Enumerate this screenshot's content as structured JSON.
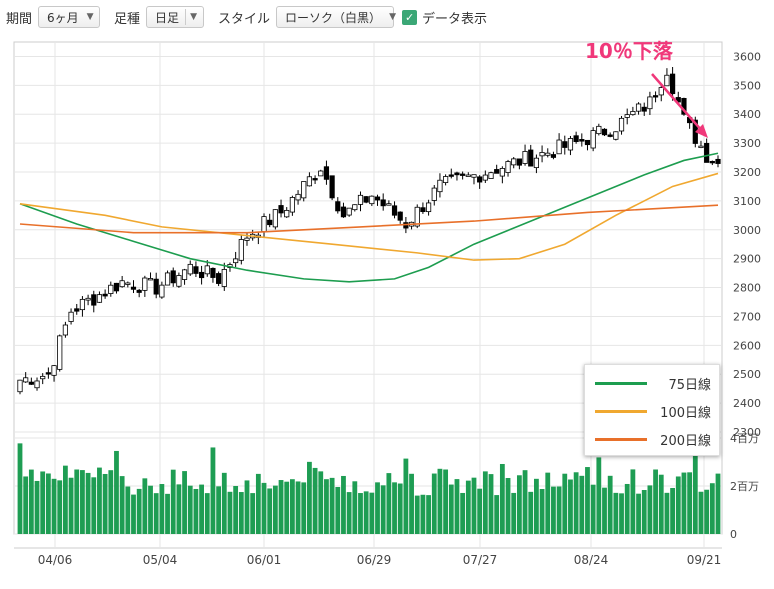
{
  "toolbar": {
    "period_label": "期間",
    "period_value": "6ヶ月",
    "ashu_label": "足種",
    "ashu_value": "日足",
    "style_label": "スタイル",
    "style_value": "ローソク（白黒）",
    "data_display_label": "データ表示",
    "data_display_checked": true
  },
  "annotation": "10％下落",
  "legend": [
    {
      "label": "75日線",
      "color": "#1d9d4f"
    },
    {
      "label": "100日線",
      "color": "#f0a830"
    },
    {
      "label": "200日線",
      "color": "#e8702a"
    }
  ],
  "chart_data": {
    "type": "candlestick",
    "price_axis": {
      "ticks": [
        3600,
        3500,
        3400,
        3300,
        3200,
        3100,
        3000,
        2900,
        2800,
        2700,
        2600,
        2500,
        2400,
        2300
      ],
      "range": [
        2300,
        3650
      ]
    },
    "volume_axis": {
      "ticks": [
        "4百万",
        "2百万",
        "0"
      ],
      "range": [
        0,
        4
      ]
    },
    "x_labels": [
      "04/06",
      "05/04",
      "06/01",
      "06/29",
      "07/27",
      "08/24",
      "09/21"
    ],
    "colors": {
      "up": "#ffffff",
      "down": "#000000",
      "volume": "#1e9d53"
    },
    "grid": true
  }
}
